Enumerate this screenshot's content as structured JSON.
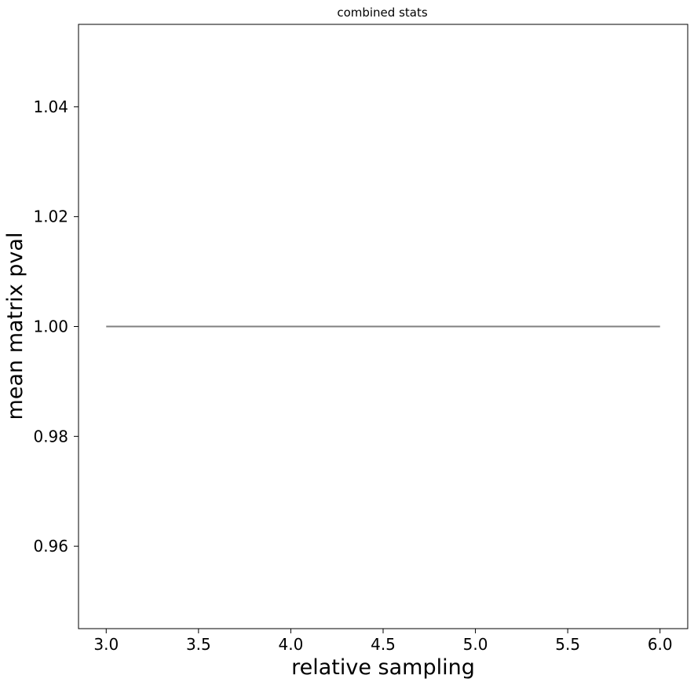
{
  "chart_data": {
    "type": "line",
    "title": "combined stats",
    "xlabel": "relative sampling",
    "ylabel": "mean matrix pval",
    "xlim": [
      2.85,
      6.15
    ],
    "ylim": [
      0.945,
      1.055
    ],
    "xticks": [
      3.0,
      3.5,
      4.0,
      4.5,
      5.0,
      5.5,
      6.0
    ],
    "xtick_labels": [
      "3.0",
      "3.5",
      "4.0",
      "4.5",
      "5.0",
      "5.5",
      "6.0"
    ],
    "yticks": [
      0.96,
      0.98,
      1.0,
      1.02,
      1.04
    ],
    "ytick_labels": [
      "0.96",
      "0.98",
      "1.00",
      "1.02",
      "1.04"
    ],
    "grid": false,
    "series": [
      {
        "x": [
          3.0,
          6.0
        ],
        "y": [
          1.0,
          1.0
        ],
        "color": "#808080"
      }
    ]
  }
}
